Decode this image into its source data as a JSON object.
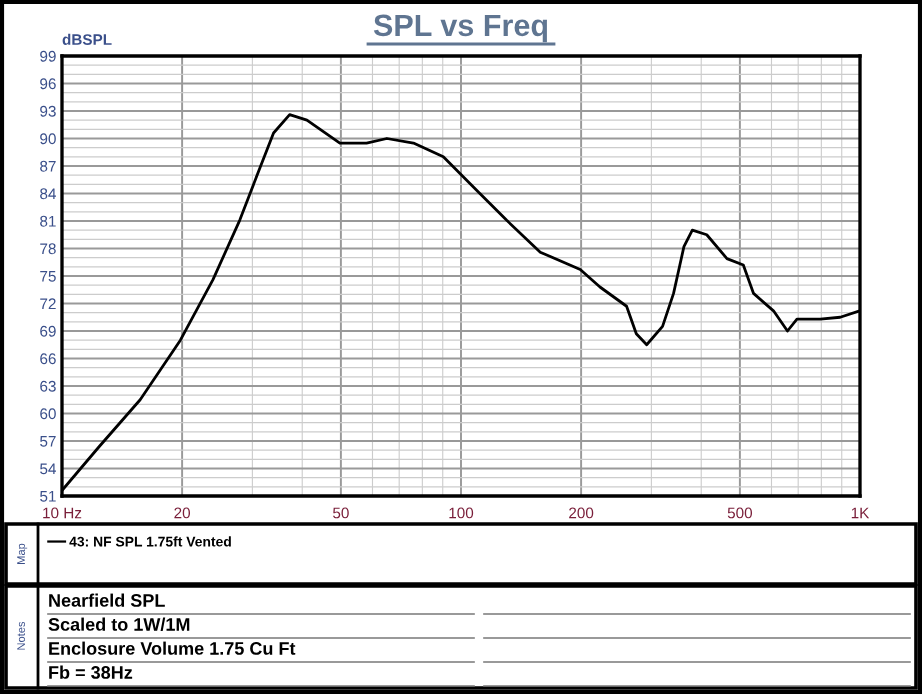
{
  "chart_data": {
    "type": "line",
    "title": "SPL vs Freq",
    "ylabel": "dBSPL",
    "x": [
      10,
      12.4,
      15.7,
      19.8,
      23.9,
      27.9,
      31.4,
      33.9,
      37.2,
      41.1,
      49.7,
      58,
      65.2,
      76,
      90.3,
      111.5,
      130,
      158,
      199,
      223,
      260,
      275,
      292,
      320,
      341,
      362,
      380,
      413,
      464,
      510,
      541,
      607,
      658,
      695,
      795,
      892,
      1000
    ],
    "series": [
      {
        "name": "43: NF SPL 1.75ft Vented",
        "color": "#000000",
        "values": [
          51.6,
          56.4,
          61.5,
          68.0,
          74.6,
          81.1,
          86.9,
          90.6,
          92.6,
          92.0,
          89.5,
          89.5,
          90.0,
          89.5,
          88.0,
          84.0,
          81.1,
          77.6,
          75.7,
          73.8,
          71.7,
          68.7,
          67.5,
          69.5,
          73.1,
          78.2,
          80.0,
          79.5,
          76.9,
          76.2,
          73.1,
          71.2,
          69.0,
          70.3,
          70.3,
          70.5,
          71.2
        ]
      }
    ],
    "log": "x",
    "xlim": [
      10,
      1000
    ],
    "xticks": [
      {
        "value": 10,
        "label": "10 Hz"
      },
      20,
      50,
      100,
      200,
      500,
      {
        "value": 1000,
        "label": "1K"
      }
    ],
    "ylim": [
      51,
      99
    ],
    "yticks": [
      51,
      54,
      57,
      60,
      63,
      66,
      69,
      72,
      75,
      78,
      81,
      84,
      87,
      90,
      93,
      96,
      99
    ],
    "grid": true,
    "legend": "bottom",
    "marker": "none",
    "line_style": "solid",
    "annotations": [
      "Map",
      "Notes",
      "Nearfield SPL",
      "Scaled to 1W/1M",
      "Enclosure Volume 1.75 Cu Ft",
      "Fb = 38Hz"
    ]
  }
}
